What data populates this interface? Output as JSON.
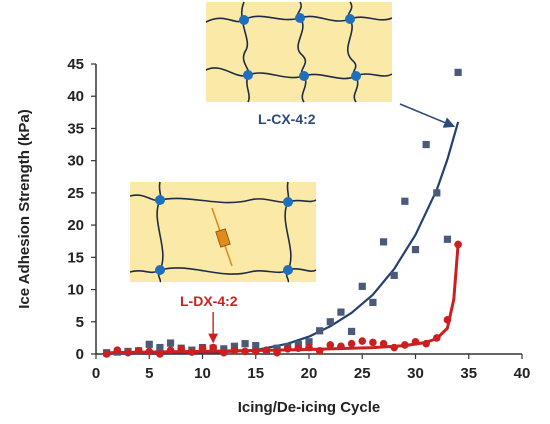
{
  "chart_data": {
    "type": "scatter",
    "xlabel": "Icing/De-icing Cycle",
    "ylabel": "Ice Adhesion Strength (kPa)",
    "xlim": [
      0,
      40
    ],
    "ylim": [
      0,
      45
    ],
    "x_ticks": [
      "0",
      "5",
      "10",
      "15",
      "20",
      "25",
      "30",
      "35",
      "40"
    ],
    "y_ticks": [
      "0",
      "5",
      "10",
      "15",
      "20",
      "25",
      "30",
      "35",
      "40",
      "45"
    ],
    "grid": false,
    "series": [
      {
        "name": "L-CX-4:2",
        "color": "#4a5a78",
        "line_color": "#26406e",
        "marker": "square",
        "points": [
          [
            1,
            0.2
          ],
          [
            2,
            0.3
          ],
          [
            3,
            0.4
          ],
          [
            4,
            0.5
          ],
          [
            5,
            1.5
          ],
          [
            6,
            1.0
          ],
          [
            7,
            1.7
          ],
          [
            8,
            0.9
          ],
          [
            9,
            0.6
          ],
          [
            10,
            1.0
          ],
          [
            11,
            0.9
          ],
          [
            12,
            0.8
          ],
          [
            13,
            1.2
          ],
          [
            14,
            1.6
          ],
          [
            15,
            1.3
          ],
          [
            16,
            0.4
          ],
          [
            17,
            0.9
          ],
          [
            18,
            1.1
          ],
          [
            19,
            1.5
          ],
          [
            20,
            1.9
          ],
          [
            21,
            3.6
          ],
          [
            22,
            5.0
          ],
          [
            23,
            6.5
          ],
          [
            24,
            3.5
          ],
          [
            25,
            10.5
          ],
          [
            26,
            8.0
          ],
          [
            27,
            17.4
          ],
          [
            28,
            12.2
          ],
          [
            29,
            23.7
          ],
          [
            30,
            16.2
          ],
          [
            31,
            32.5
          ],
          [
            32,
            25.0
          ],
          [
            33,
            17.8
          ],
          [
            34,
            43.7
          ]
        ],
        "fit_curve": [
          [
            1,
            0.05
          ],
          [
            5,
            0.05
          ],
          [
            10,
            0.1
          ],
          [
            15,
            0.6
          ],
          [
            18,
            1.6
          ],
          [
            20,
            2.7
          ],
          [
            22,
            4.3
          ],
          [
            24,
            6.4
          ],
          [
            26,
            9.2
          ],
          [
            28,
            13.2
          ],
          [
            30,
            18.5
          ],
          [
            32,
            25.5
          ],
          [
            33,
            30.2
          ],
          [
            34,
            36.0
          ]
        ]
      },
      {
        "name": "L-DX-4:2",
        "color": "#cc1f1f",
        "line_color": "#cc1f1f",
        "marker": "circle",
        "points": [
          [
            1,
            0.0
          ],
          [
            2,
            0.6
          ],
          [
            3,
            0.2
          ],
          [
            4,
            0.5
          ],
          [
            5,
            0.4
          ],
          [
            6,
            0.0
          ],
          [
            7,
            0.6
          ],
          [
            8,
            0.8
          ],
          [
            9,
            0.3
          ],
          [
            10,
            0.9
          ],
          [
            11,
            1.0
          ],
          [
            12,
            0.2
          ],
          [
            13,
            0.5
          ],
          [
            14,
            0.4
          ],
          [
            15,
            0.4
          ],
          [
            16,
            0.6
          ],
          [
            17,
            0.2
          ],
          [
            18,
            0.8
          ],
          [
            19,
            0.9
          ],
          [
            20,
            1.0
          ],
          [
            21,
            0.5
          ],
          [
            22,
            1.4
          ],
          [
            23,
            1.2
          ],
          [
            24,
            1.6
          ],
          [
            25,
            2.0
          ],
          [
            26,
            1.8
          ],
          [
            27,
            1.6
          ],
          [
            28,
            1.0
          ],
          [
            29,
            1.4
          ],
          [
            30,
            1.9
          ],
          [
            31,
            1.6
          ],
          [
            32,
            2.5
          ],
          [
            33,
            5.3
          ],
          [
            34,
            17.0
          ]
        ],
        "fit_curve": [
          [
            1,
            0.2
          ],
          [
            10,
            0.4
          ],
          [
            20,
            0.7
          ],
          [
            26,
            1.0
          ],
          [
            29,
            1.3
          ],
          [
            31,
            1.8
          ],
          [
            32,
            2.4
          ],
          [
            33,
            4.0
          ],
          [
            33.6,
            8.5
          ],
          [
            34,
            17.0
          ]
        ]
      }
    ],
    "annotations": [
      {
        "text": "L-CX-4:2",
        "color": "#2e4a7a",
        "arrow_to": [
          34,
          35
        ]
      },
      {
        "text": "L-DX-4:2",
        "color": "#cc1f1f",
        "arrow_to": [
          11,
          1.8
        ]
      }
    ]
  },
  "colors": {
    "network_fill": "#fbe9a8",
    "network_line": "#1e2d44",
    "node": "#1f6fbf",
    "crosslinker": "#e08b1e"
  }
}
